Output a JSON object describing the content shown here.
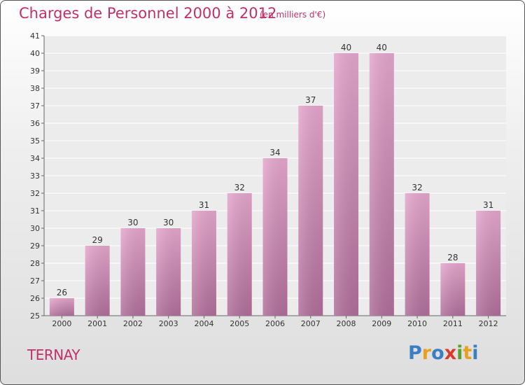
{
  "header": {
    "title": "Charges de Personnel 2000 à 2012",
    "subtitle": "(en milliers d'€)"
  },
  "footer": {
    "commune": "TERNAY",
    "logo_letters": [
      "P",
      "r",
      "o",
      "x",
      "i",
      "t",
      "i"
    ],
    "logo_colors": [
      "#3a7fc4",
      "#e8a01d",
      "#3a7fc4",
      "#d83a2c",
      "#5aa02c",
      "#e8a01d",
      "#3a7fc4"
    ]
  },
  "chart_data": {
    "type": "bar",
    "title": "Charges de Personnel 2000 à 2012",
    "subtitle": "(en milliers d'€)",
    "categories": [
      "2000",
      "2001",
      "2002",
      "2003",
      "2004",
      "2005",
      "2006",
      "2007",
      "2008",
      "2009",
      "2010",
      "2011",
      "2012"
    ],
    "values": [
      26,
      29,
      30,
      30,
      31,
      32,
      34,
      37,
      40,
      40,
      32,
      28,
      31
    ],
    "ylim": [
      25,
      41
    ],
    "yticks": [
      25,
      26,
      27,
      28,
      29,
      30,
      31,
      32,
      33,
      34,
      35,
      36,
      37,
      38,
      39,
      40,
      41
    ],
    "grid": true,
    "bar_color_top": "#e4a6cc",
    "bar_color_bottom": "#b06e99",
    "xlabel": "",
    "ylabel": ""
  }
}
